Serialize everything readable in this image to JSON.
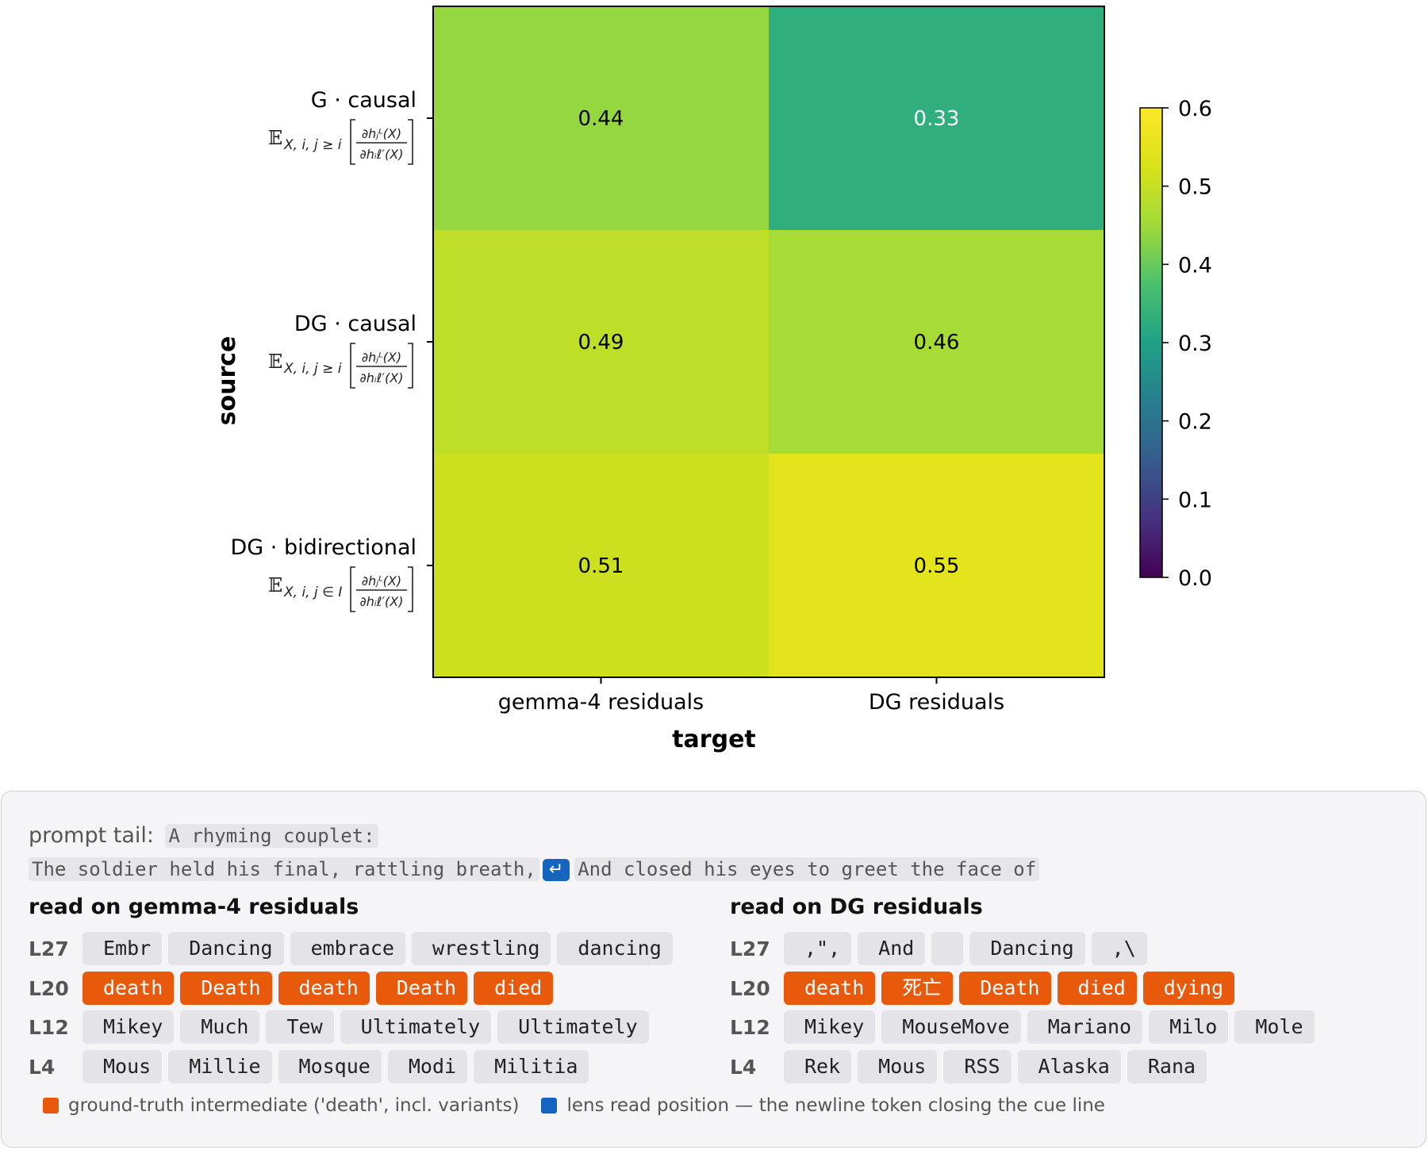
{
  "chart_data": {
    "type": "heatmap",
    "xlabel": "target",
    "ylabel": "source",
    "x_categories": [
      "gemma-4 residuals",
      "DG residuals"
    ],
    "y_categories": [
      {
        "label": "G · causal",
        "formula_sub": "X, i, j ≥ i"
      },
      {
        "label": "DG · causal",
        "formula_sub": "X, i, j ≥ i"
      },
      {
        "label": "DG · bidirectional",
        "formula_sub": "X, i, j ∈ I"
      }
    ],
    "values": [
      [
        0.44,
        0.33
      ],
      [
        0.49,
        0.46
      ],
      [
        0.51,
        0.55
      ]
    ],
    "cell_labels": [
      [
        "0.44",
        "0.33"
      ],
      [
        "0.49",
        "0.46"
      ],
      [
        "0.51",
        "0.55"
      ]
    ],
    "colormap": "viridis",
    "clim": [
      0.0,
      0.6
    ],
    "colorbar_ticks": [
      "0.0",
      "0.1",
      "0.2",
      "0.3",
      "0.4",
      "0.5",
      "0.6"
    ]
  },
  "prompt": {
    "label": "prompt tail:",
    "line1": "A rhyming couplet:",
    "line2a": "The soldier held his final, rattling breath,",
    "newline_glyph": "↵",
    "line2b": "And closed his eyes to greet the face of"
  },
  "lens": {
    "left": {
      "title": "read on gemma-4 residuals",
      "rows": [
        {
          "layer": "L27",
          "tokens": [
            {
              "t": "Embr",
              "hl": false
            },
            {
              "t": "Dancing",
              "hl": false
            },
            {
              "t": "embrace",
              "hl": false
            },
            {
              "t": "wrestling",
              "hl": false
            },
            {
              "t": "dancing",
              "hl": false
            }
          ]
        },
        {
          "layer": "L20",
          "tokens": [
            {
              "t": "death",
              "hl": true
            },
            {
              "t": "Death",
              "hl": true
            },
            {
              "t": "death",
              "hl": true
            },
            {
              "t": "Death",
              "hl": true
            },
            {
              "t": "died",
              "hl": true
            }
          ]
        },
        {
          "layer": "L12",
          "tokens": [
            {
              "t": "Mikey",
              "hl": false
            },
            {
              "t": "Much",
              "hl": false
            },
            {
              "t": "Tew",
              "hl": false
            },
            {
              "t": "Ultimately",
              "hl": false
            },
            {
              "t": "Ultimately",
              "hl": false
            }
          ]
        },
        {
          "layer": "L4",
          "tokens": [
            {
              "t": "Mous",
              "hl": false
            },
            {
              "t": "Millie",
              "hl": false
            },
            {
              "t": "Mosque",
              "hl": false
            },
            {
              "t": "Modi",
              "hl": false
            },
            {
              "t": "Militia",
              "hl": false
            }
          ]
        }
      ]
    },
    "right": {
      "title": "read on DG residuals",
      "rows": [
        {
          "layer": "L27",
          "tokens": [
            {
              "t": ",\",",
              "hl": false
            },
            {
              "t": "And",
              "hl": false
            },
            {
              "t": "",
              "hl": false
            },
            {
              "t": "Dancing",
              "hl": false
            },
            {
              "t": ",\\",
              "hl": false
            }
          ]
        },
        {
          "layer": "L20",
          "tokens": [
            {
              "t": "death",
              "hl": true
            },
            {
              "t": "死亡",
              "hl": true
            },
            {
              "t": "Death",
              "hl": true
            },
            {
              "t": "died",
              "hl": true
            },
            {
              "t": "dying",
              "hl": true
            }
          ]
        },
        {
          "layer": "L12",
          "tokens": [
            {
              "t": "Mikey",
              "hl": false
            },
            {
              "t": "MouseMove",
              "hl": false
            },
            {
              "t": "Mariano",
              "hl": false
            },
            {
              "t": "Milo",
              "hl": false
            },
            {
              "t": "Mole",
              "hl": false
            }
          ]
        },
        {
          "layer": "L4",
          "tokens": [
            {
              "t": "Rek",
              "hl": false
            },
            {
              "t": "Mous",
              "hl": false
            },
            {
              "t": "RSS",
              "hl": false
            },
            {
              "t": "Alaska",
              "hl": false
            },
            {
              "t": "Rana",
              "hl": false
            }
          ]
        }
      ]
    }
  },
  "legend": {
    "gt_label": "ground-truth intermediate ('death', incl. variants)",
    "gt_color": "#e8590c",
    "lens_label": "lens read position — the newline token closing the cue line",
    "lens_color": "#1565c0"
  }
}
